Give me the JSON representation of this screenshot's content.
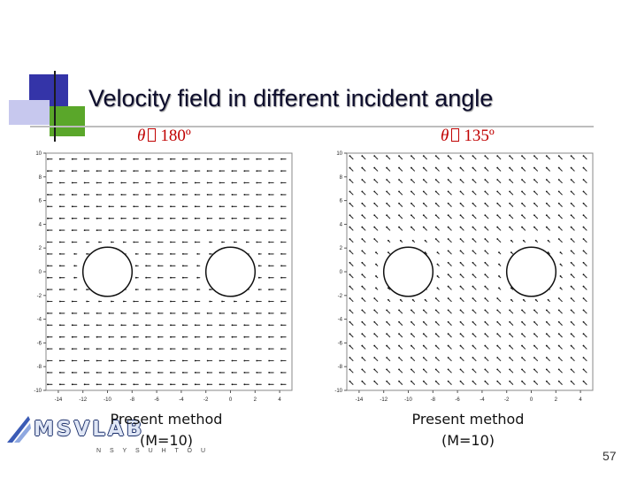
{
  "slide": {
    "title": "Velocity field in different  incident angle",
    "page_number": "57"
  },
  "panels": [
    {
      "angle_symbol": "θ",
      "angle_value": "180º",
      "caption_line1": "Present method",
      "caption_line2": "(M=10)",
      "direction_deg": 180
    },
    {
      "angle_symbol": "θ",
      "angle_value": "135º",
      "caption_line1": "Present method",
      "caption_line2": "(M=10)",
      "direction_deg": 135
    }
  ],
  "axes": {
    "x_ticks": [
      "-14",
      "-12",
      "-10",
      "-8",
      "-6",
      "-4",
      "-2",
      "0",
      "2",
      "4"
    ],
    "y_ticks": [
      "10",
      "8",
      "6",
      "4",
      "2",
      "0",
      "-2",
      "-4",
      "-6",
      "-8",
      "-10"
    ],
    "xlim": [
      -15,
      5
    ],
    "ylim": [
      -10,
      10
    ],
    "cylinders": [
      {
        "cx": -10,
        "cy": 0,
        "r": 2
      },
      {
        "cx": 0,
        "cy": 0,
        "r": 2
      }
    ]
  },
  "logo": {
    "text": "MSVLAB",
    "subtext": "N S Y S U   H T O U"
  },
  "colors": {
    "title": "#0d0d2c",
    "angle": "#c00000",
    "logo_accent": "#1a2e6a"
  }
}
